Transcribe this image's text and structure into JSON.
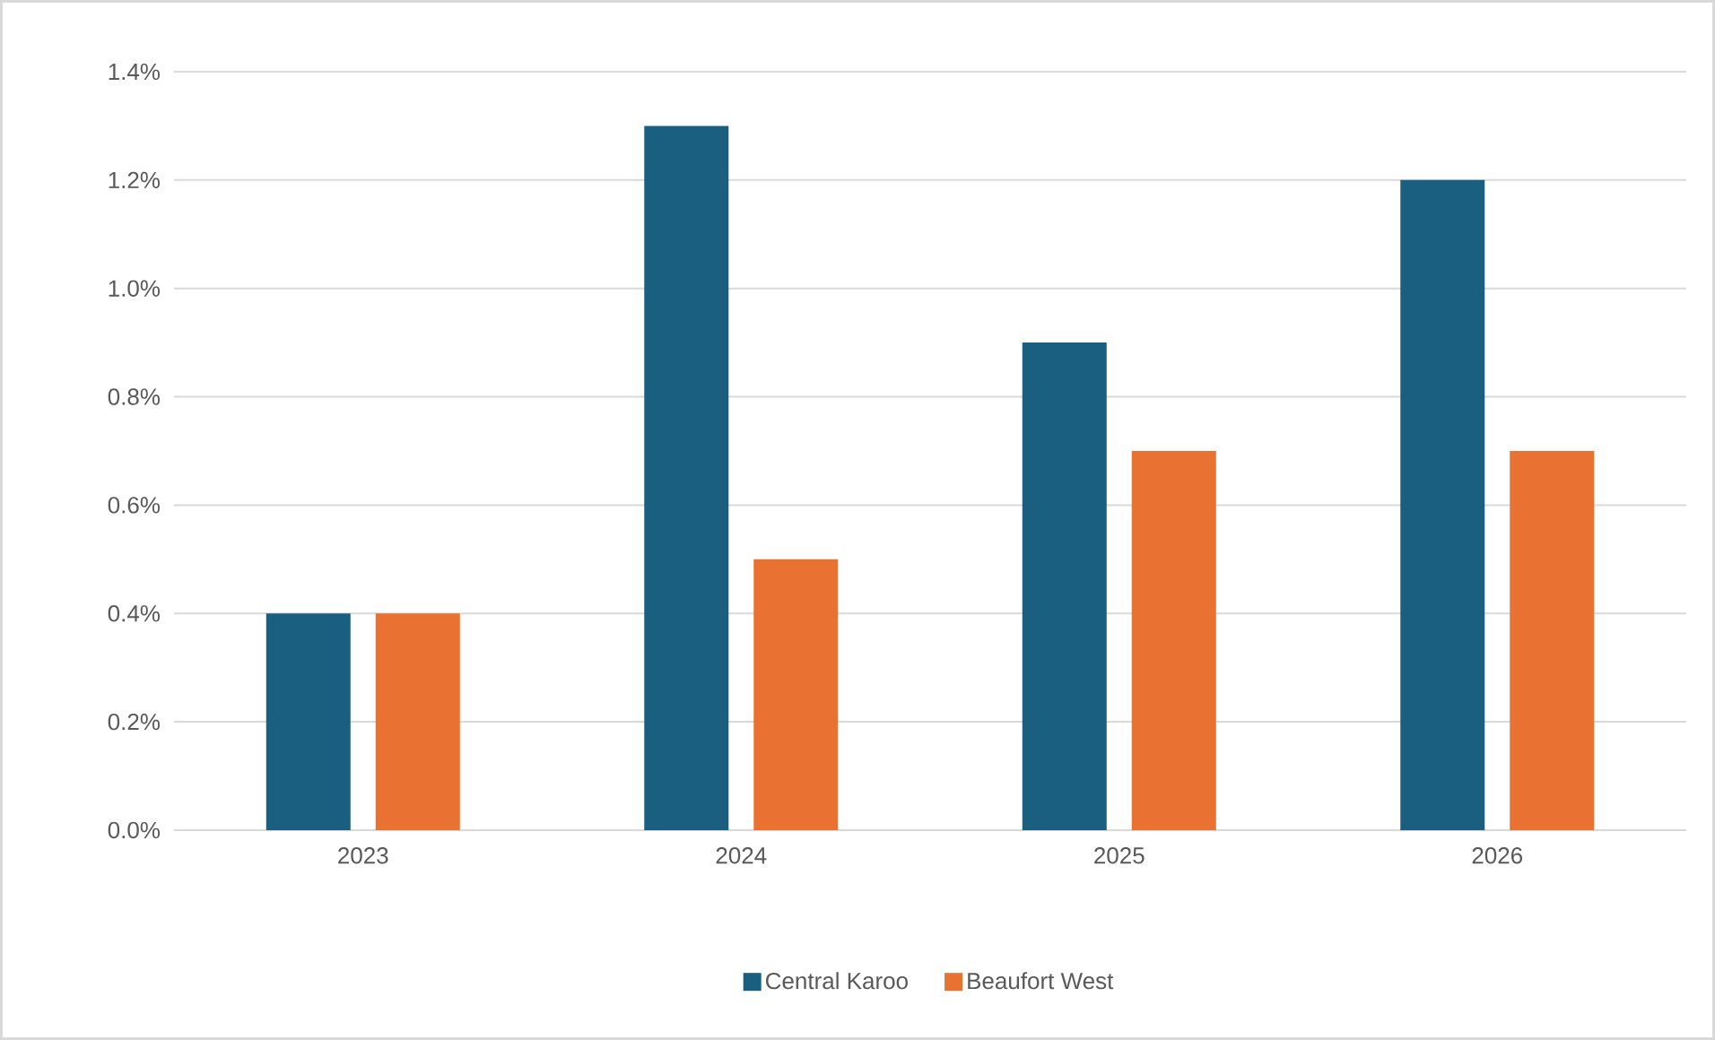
{
  "chart_data": {
    "type": "bar",
    "categories": [
      "2023",
      "2024",
      "2025",
      "2026"
    ],
    "series": [
      {
        "name": "Central Karoo",
        "color": "#1a5f80",
        "values": [
          0.4,
          1.3,
          0.9,
          1.2
        ]
      },
      {
        "name": "Beaufort West",
        "color": "#e97132",
        "values": [
          0.4,
          0.5,
          0.7,
          0.7
        ]
      }
    ],
    "ylim": [
      0,
      1.4
    ],
    "yticks": [
      {
        "value": 0,
        "label": "0.0%"
      },
      {
        "value": 0.2,
        "label": "0.2%"
      },
      {
        "value": 0.4,
        "label": "0.4%"
      },
      {
        "value": 0.6,
        "label": "0.6%"
      },
      {
        "value": 0.8,
        "label": "0.8%"
      },
      {
        "value": 1.0,
        "label": "1.0%"
      },
      {
        "value": 1.2,
        "label": "1.2%"
      },
      {
        "value": 1.4,
        "label": "1.4%"
      }
    ],
    "grid": "y",
    "legend": "bottom"
  }
}
